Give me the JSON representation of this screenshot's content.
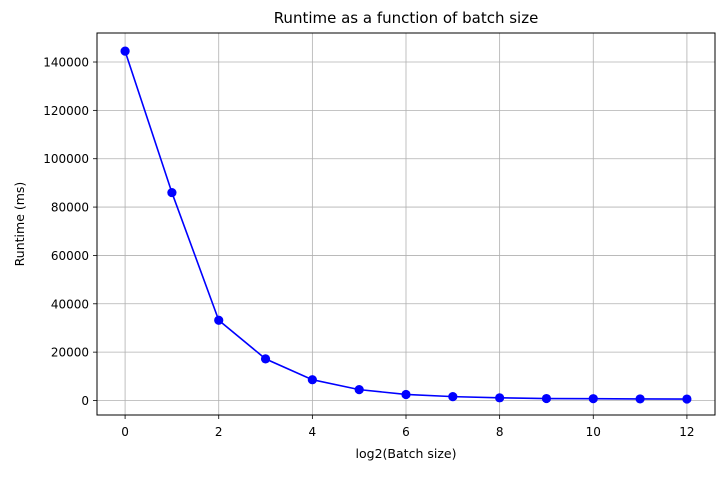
{
  "chart_data": {
    "type": "line",
    "title": "Runtime as a function of batch size",
    "xlabel": "log2(Batch size)",
    "ylabel": "Runtime (ms)",
    "x": [
      0,
      1,
      2,
      3,
      4,
      5,
      6,
      7,
      8,
      9,
      10,
      11,
      12
    ],
    "series": [
      {
        "values": [
          144500,
          86000,
          33200,
          17200,
          8600,
          4500,
          2500,
          1600,
          1100,
          800,
          750,
          650,
          600
        ],
        "color": "#0000ff",
        "marker": "circle"
      }
    ],
    "xticks": [
      0,
      2,
      4,
      6,
      8,
      10,
      12
    ],
    "yticks": [
      0,
      20000,
      40000,
      60000,
      80000,
      100000,
      120000,
      140000
    ],
    "xlim": [
      -0.6,
      12.6
    ],
    "ylim": [
      -6000,
      152000
    ],
    "grid": true
  }
}
